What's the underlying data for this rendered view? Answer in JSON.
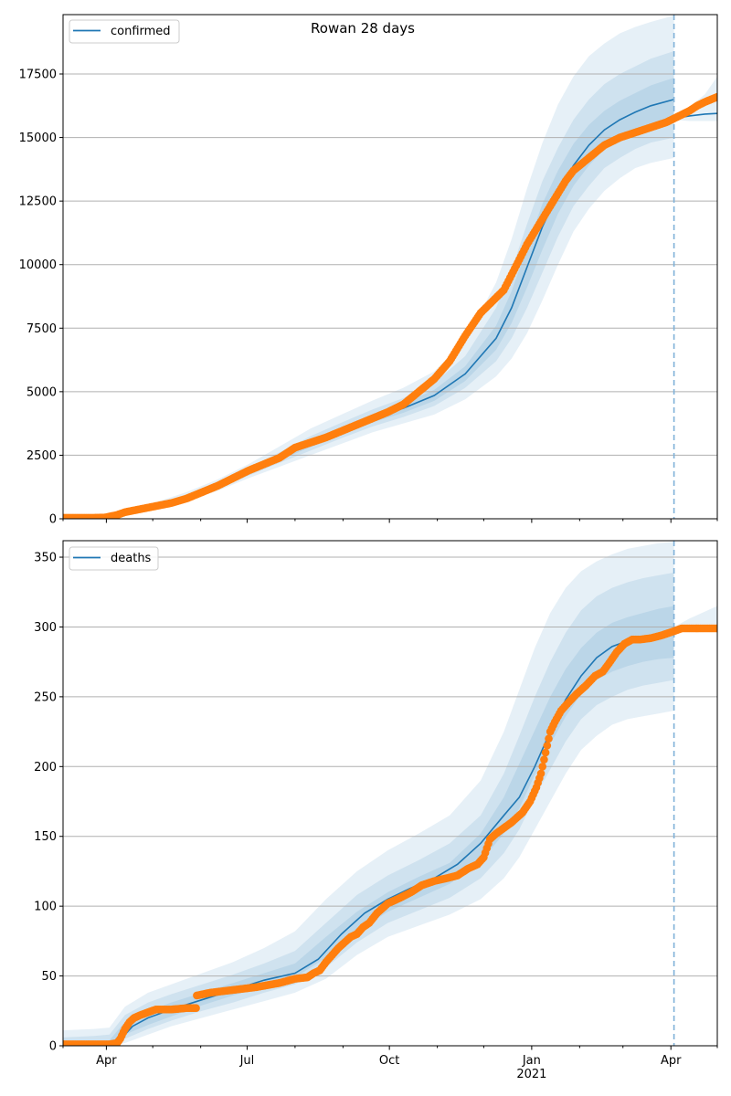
{
  "chart_data": [
    {
      "type": "line",
      "title": "Rowan 28 days",
      "legend": {
        "entries": [
          "confirmed"
        ],
        "placement": "top-left"
      },
      "xlabel": "",
      "ylabel": "",
      "x_axis": {
        "type": "date",
        "start": "2020-03-04",
        "end": "2021-05-01",
        "tick_labels": [
          "Apr",
          "Jul",
          "Oct",
          "Jan\n2021",
          "Apr"
        ],
        "tick_days": [
          28,
          119,
          211,
          303,
          393
        ],
        "minor_tick_days": [
          0,
          58,
          89,
          150,
          181,
          242,
          272,
          334,
          362,
          423
        ]
      },
      "ylim": [
        0,
        19836
      ],
      "yticks": [
        0,
        2500,
        5000,
        7500,
        10000,
        12500,
        15000,
        17500
      ],
      "ytick_labels": [
        "0",
        "2500",
        "5000",
        "7500",
        "10000",
        "12500",
        "15000",
        "17500"
      ],
      "grid": "y",
      "forecast_start_day": 395,
      "colors": {
        "model": "#1f77b4",
        "observed": "#ff7f0e",
        "band": "#1f77b4",
        "grid": "#b0b0b0",
        "vline": "#7fb1d8"
      },
      "series": [
        {
          "name": "confirmed",
          "kind": "model-median",
          "x": [
            0,
            20,
            40,
            60,
            80,
            100,
            120,
            140,
            160,
            180,
            200,
            220,
            240,
            260,
            280,
            290,
            300,
            310,
            320,
            330,
            340,
            350,
            360,
            370,
            380,
            395
          ],
          "y": [
            0,
            40,
            220,
            500,
            850,
            1300,
            1850,
            2400,
            2950,
            3450,
            3950,
            4350,
            4850,
            5700,
            7100,
            8300,
            9900,
            11500,
            12800,
            13900,
            14700,
            15300,
            15700,
            16000,
            16250,
            16500
          ]
        },
        {
          "name": "confirmed-forecast",
          "kind": "model-median",
          "x": [
            395,
            405,
            415,
            423
          ],
          "y": [
            15750,
            15850,
            15920,
            15950
          ]
        },
        {
          "name": "observed-confirmed",
          "kind": "observed",
          "x": [
            0,
            10,
            20,
            27,
            30,
            35,
            40,
            50,
            60,
            70,
            80,
            90,
            100,
            110,
            120,
            130,
            140,
            150,
            160,
            170,
            180,
            190,
            200,
            210,
            220,
            230,
            240,
            250,
            260,
            270,
            280,
            285,
            290,
            295,
            300,
            305,
            310,
            315,
            320,
            325,
            330,
            340,
            350,
            360,
            370,
            380,
            390,
            395,
            400,
            405,
            410,
            415,
            423
          ],
          "y": [
            40,
            40,
            40,
            50,
            90,
            150,
            260,
            380,
            500,
            620,
            800,
            1050,
            1300,
            1600,
            1900,
            2150,
            2400,
            2800,
            3000,
            3200,
            3450,
            3700,
            3950,
            4200,
            4500,
            5000,
            5500,
            6200,
            7200,
            8100,
            8700,
            9000,
            9600,
            10200,
            10800,
            11300,
            11800,
            12300,
            12800,
            13300,
            13700,
            14200,
            14700,
            15000,
            15200,
            15400,
            15600,
            15750,
            15900,
            16050,
            16250,
            16400,
            16600
          ]
        }
      ],
      "bands": [
        {
          "level": "outer",
          "x": [
            0,
            20,
            40,
            60,
            80,
            100,
            120,
            140,
            160,
            180,
            200,
            220,
            240,
            260,
            280,
            290,
            300,
            310,
            320,
            330,
            340,
            350,
            360,
            370,
            380,
            395
          ],
          "low": [
            0,
            20,
            150,
            400,
            700,
            1100,
            1600,
            2050,
            2500,
            2950,
            3400,
            3750,
            4100,
            4700,
            5600,
            6300,
            7300,
            8600,
            10000,
            11300,
            12200,
            12900,
            13400,
            13800,
            14000,
            14200
          ],
          "high": [
            0,
            70,
            320,
            650,
            1050,
            1550,
            2150,
            2850,
            3550,
            4100,
            4650,
            5150,
            5800,
            7000,
            9300,
            11000,
            13000,
            14800,
            16300,
            17400,
            18200,
            18700,
            19100,
            19350,
            19550,
            19800
          ]
        },
        {
          "level": "middle",
          "x": [
            0,
            20,
            40,
            60,
            80,
            100,
            120,
            140,
            160,
            180,
            200,
            220,
            240,
            260,
            280,
            290,
            300,
            310,
            320,
            330,
            340,
            350,
            360,
            370,
            380,
            395
          ],
          "low": [
            0,
            28,
            180,
            440,
            760,
            1180,
            1700,
            2200,
            2680,
            3170,
            3630,
            4000,
            4440,
            5150,
            6200,
            7100,
            8300,
            9700,
            11100,
            12300,
            13100,
            13800,
            14200,
            14550,
            14800,
            15000
          ],
          "high": [
            0,
            55,
            270,
            570,
            950,
            1430,
            2000,
            2620,
            3250,
            3780,
            4300,
            4750,
            5350,
            6400,
            8300,
            9800,
            11600,
            13300,
            14600,
            15700,
            16500,
            17100,
            17500,
            17800,
            18100,
            18400
          ]
        },
        {
          "level": "inner",
          "x": [
            0,
            20,
            40,
            60,
            80,
            100,
            120,
            140,
            160,
            180,
            200,
            220,
            240,
            260,
            280,
            290,
            300,
            310,
            320,
            330,
            340,
            350,
            360,
            370,
            380,
            395
          ],
          "low": [
            0,
            34,
            200,
            470,
            800,
            1240,
            1770,
            2300,
            2820,
            3310,
            3790,
            4170,
            4640,
            5420,
            6650,
            7700,
            9100,
            10600,
            12000,
            13100,
            13900,
            14550,
            14950,
            15250,
            15500,
            15700
          ],
          "high": [
            0,
            47,
            245,
            535,
            900,
            1370,
            1930,
            2500,
            3090,
            3600,
            4110,
            4540,
            5070,
            6000,
            7600,
            8950,
            10700,
            12400,
            13700,
            14750,
            15500,
            16050,
            16450,
            16750,
            17050,
            17350
          ]
        },
        {
          "level": "forecast",
          "x": [
            395,
            405,
            415,
            423
          ],
          "low": [
            15700,
            15650,
            15650,
            15650
          ],
          "high": [
            15850,
            16200,
            16700,
            17400
          ]
        }
      ]
    },
    {
      "type": "line",
      "title": "",
      "legend": {
        "entries": [
          "deaths"
        ],
        "placement": "top-left"
      },
      "xlabel": "",
      "ylabel": "",
      "x_axis": {
        "type": "date",
        "start": "2020-03-04",
        "end": "2021-05-01",
        "tick_labels": [
          "Apr",
          "Jul",
          "Oct",
          "Jan\n2021",
          "Apr"
        ],
        "tick_days": [
          28,
          119,
          211,
          303,
          393
        ],
        "minor_tick_days": [
          0,
          58,
          89,
          150,
          181,
          242,
          272,
          334,
          362,
          423
        ]
      },
      "ylim": [
        0,
        361.8
      ],
      "yticks": [
        0,
        50,
        100,
        150,
        200,
        250,
        300,
        350
      ],
      "ytick_labels": [
        "0",
        "50",
        "100",
        "150",
        "200",
        "250",
        "300",
        "350"
      ],
      "grid": "y",
      "forecast_start_day": 395,
      "colors": {
        "model": "#1f77b4",
        "observed": "#ff7f0e",
        "band": "#1f77b4",
        "grid": "#b0b0b0",
        "vline": "#7fb1d8"
      },
      "series": [
        {
          "name": "deaths",
          "kind": "model-median",
          "x": [
            0,
            20,
            35,
            45,
            55,
            70,
            90,
            110,
            130,
            150,
            165,
            180,
            195,
            210,
            225,
            240,
            255,
            270,
            285,
            295,
            305,
            315,
            325,
            335,
            345,
            355,
            365,
            375,
            385,
            395
          ],
          "y": [
            0,
            0,
            2,
            14,
            20,
            26,
            33,
            40,
            47,
            52,
            62,
            80,
            95,
            105,
            113,
            120,
            130,
            145,
            165,
            178,
            200,
            225,
            248,
            265,
            278,
            286,
            290,
            293,
            295,
            297
          ]
        },
        {
          "name": "deaths-forecast",
          "kind": "model-median",
          "x": [
            395,
            405,
            415,
            423
          ],
          "y": [
            298,
            299,
            299,
            300
          ]
        },
        {
          "name": "observed-deaths",
          "kind": "observed",
          "x": [
            0,
            10,
            20,
            30,
            35,
            37,
            40,
            43,
            46,
            50,
            55,
            60,
            70,
            80,
            86,
            86.5,
            95,
            110,
            125,
            140,
            150,
            158,
            162,
            166,
            170,
            178,
            186,
            190,
            194,
            198,
            203,
            210,
            218,
            225,
            232,
            240,
            248,
            255,
            262,
            268,
            272,
            276,
            280,
            290,
            297,
            302,
            306,
            309,
            311,
            313,
            315,
            318,
            322,
            326,
            332,
            338,
            344,
            349,
            353,
            358,
            363,
            368,
            373,
            380,
            387,
            395,
            400,
            410,
            423
          ],
          "y": [
            1,
            1,
            1,
            1,
            2,
            5,
            12,
            17,
            20,
            22,
            24,
            26,
            26,
            27,
            27,
            36,
            38,
            40,
            42,
            45,
            48,
            49,
            52,
            54,
            60,
            70,
            78,
            80,
            85,
            88,
            95,
            102,
            106,
            110,
            115,
            118,
            120,
            122,
            127,
            130,
            135,
            148,
            152,
            160,
            167,
            175,
            185,
            195,
            205,
            215,
            225,
            232,
            240,
            245,
            252,
            258,
            265,
            268,
            274,
            282,
            288,
            291,
            291,
            292,
            294,
            297,
            299,
            299,
            299
          ]
        }
      ],
      "bands": [
        {
          "level": "outer",
          "x": [
            0,
            20,
            30,
            40,
            55,
            70,
            90,
            110,
            130,
            150,
            170,
            190,
            210,
            230,
            250,
            270,
            285,
            295,
            305,
            315,
            325,
            335,
            345,
            355,
            365,
            375,
            385,
            395
          ],
          "low": [
            0,
            0,
            0,
            2,
            8,
            14,
            20,
            26,
            32,
            38,
            48,
            65,
            78,
            86,
            94,
            105,
            120,
            135,
            155,
            175,
            195,
            212,
            222,
            230,
            234,
            236,
            238,
            240
          ],
          "high": [
            11,
            12,
            13,
            28,
            38,
            44,
            52,
            60,
            70,
            82,
            105,
            125,
            140,
            152,
            165,
            190,
            225,
            255,
            285,
            310,
            328,
            340,
            347,
            352,
            356,
            358,
            360,
            361
          ]
        },
        {
          "level": "middle",
          "x": [
            0,
            20,
            30,
            40,
            55,
            70,
            90,
            110,
            130,
            150,
            170,
            190,
            210,
            230,
            250,
            270,
            285,
            295,
            305,
            315,
            325,
            335,
            345,
            355,
            365,
            375,
            385,
            395
          ],
          "low": [
            0,
            0,
            0,
            5,
            12,
            18,
            25,
            31,
            38,
            44,
            56,
            74,
            88,
            97,
            106,
            120,
            138,
            155,
            178,
            198,
            218,
            234,
            244,
            250,
            255,
            258,
            260,
            262
          ],
          "high": [
            6,
            7,
            8,
            22,
            31,
            37,
            44,
            51,
            59,
            68,
            88,
            108,
            122,
            133,
            145,
            165,
            195,
            222,
            250,
            275,
            296,
            312,
            322,
            328,
            332,
            335,
            337,
            339
          ]
        },
        {
          "level": "inner",
          "x": [
            0,
            20,
            30,
            40,
            55,
            70,
            90,
            110,
            130,
            150,
            170,
            190,
            210,
            230,
            250,
            270,
            285,
            295,
            305,
            315,
            325,
            335,
            345,
            355,
            365,
            375,
            385,
            395
          ],
          "low": [
            0,
            0,
            1,
            8,
            15,
            21,
            29,
            36,
            43,
            49,
            63,
            82,
            96,
            106,
            116,
            132,
            152,
            170,
            194,
            216,
            236,
            252,
            262,
            268,
            272,
            275,
            277,
            278
          ],
          "high": [
            3,
            3,
            4,
            17,
            25,
            31,
            38,
            45,
            52,
            59,
            78,
            96,
            110,
            121,
            131,
            152,
            178,
            202,
            226,
            250,
            270,
            285,
            296,
            303,
            307,
            310,
            313,
            315
          ]
        },
        {
          "level": "forecast",
          "x": [
            395,
            405,
            415,
            423
          ],
          "low": [
            296,
            297,
            298,
            299
          ],
          "high": [
            300,
            306,
            311,
            315
          ]
        }
      ]
    }
  ]
}
